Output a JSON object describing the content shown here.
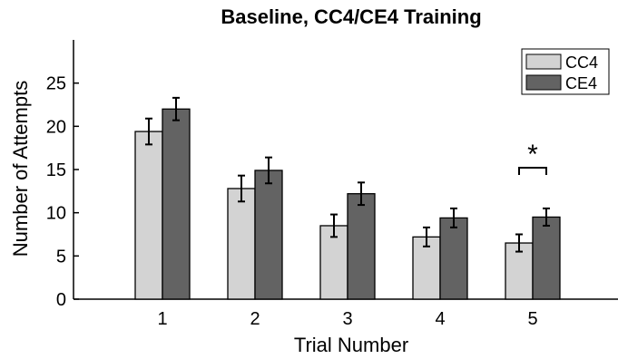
{
  "chart_data": {
    "type": "bar",
    "title": "Baseline, CC4/CE4 Training",
    "xlabel": "Trial Number",
    "ylabel": "Number of Attempts",
    "categories": [
      "1",
      "2",
      "3",
      "4",
      "5"
    ],
    "ylim": [
      0,
      30
    ],
    "yticks": [
      0,
      5,
      10,
      15,
      20,
      25
    ],
    "series": [
      {
        "name": "CC4",
        "color": "#d3d3d3",
        "values": [
          19.4,
          12.8,
          8.5,
          7.2,
          6.5
        ],
        "errors": [
          1.5,
          1.5,
          1.3,
          1.1,
          1.0
        ]
      },
      {
        "name": "CE4",
        "color": "#636363",
        "values": [
          22.0,
          14.9,
          12.2,
          9.4,
          9.5
        ],
        "errors": [
          1.3,
          1.5,
          1.3,
          1.1,
          1.0
        ]
      }
    ],
    "legend_position": "top-right",
    "annotations": [
      {
        "text": "*",
        "category": "5",
        "type": "significance-bracket"
      }
    ]
  }
}
